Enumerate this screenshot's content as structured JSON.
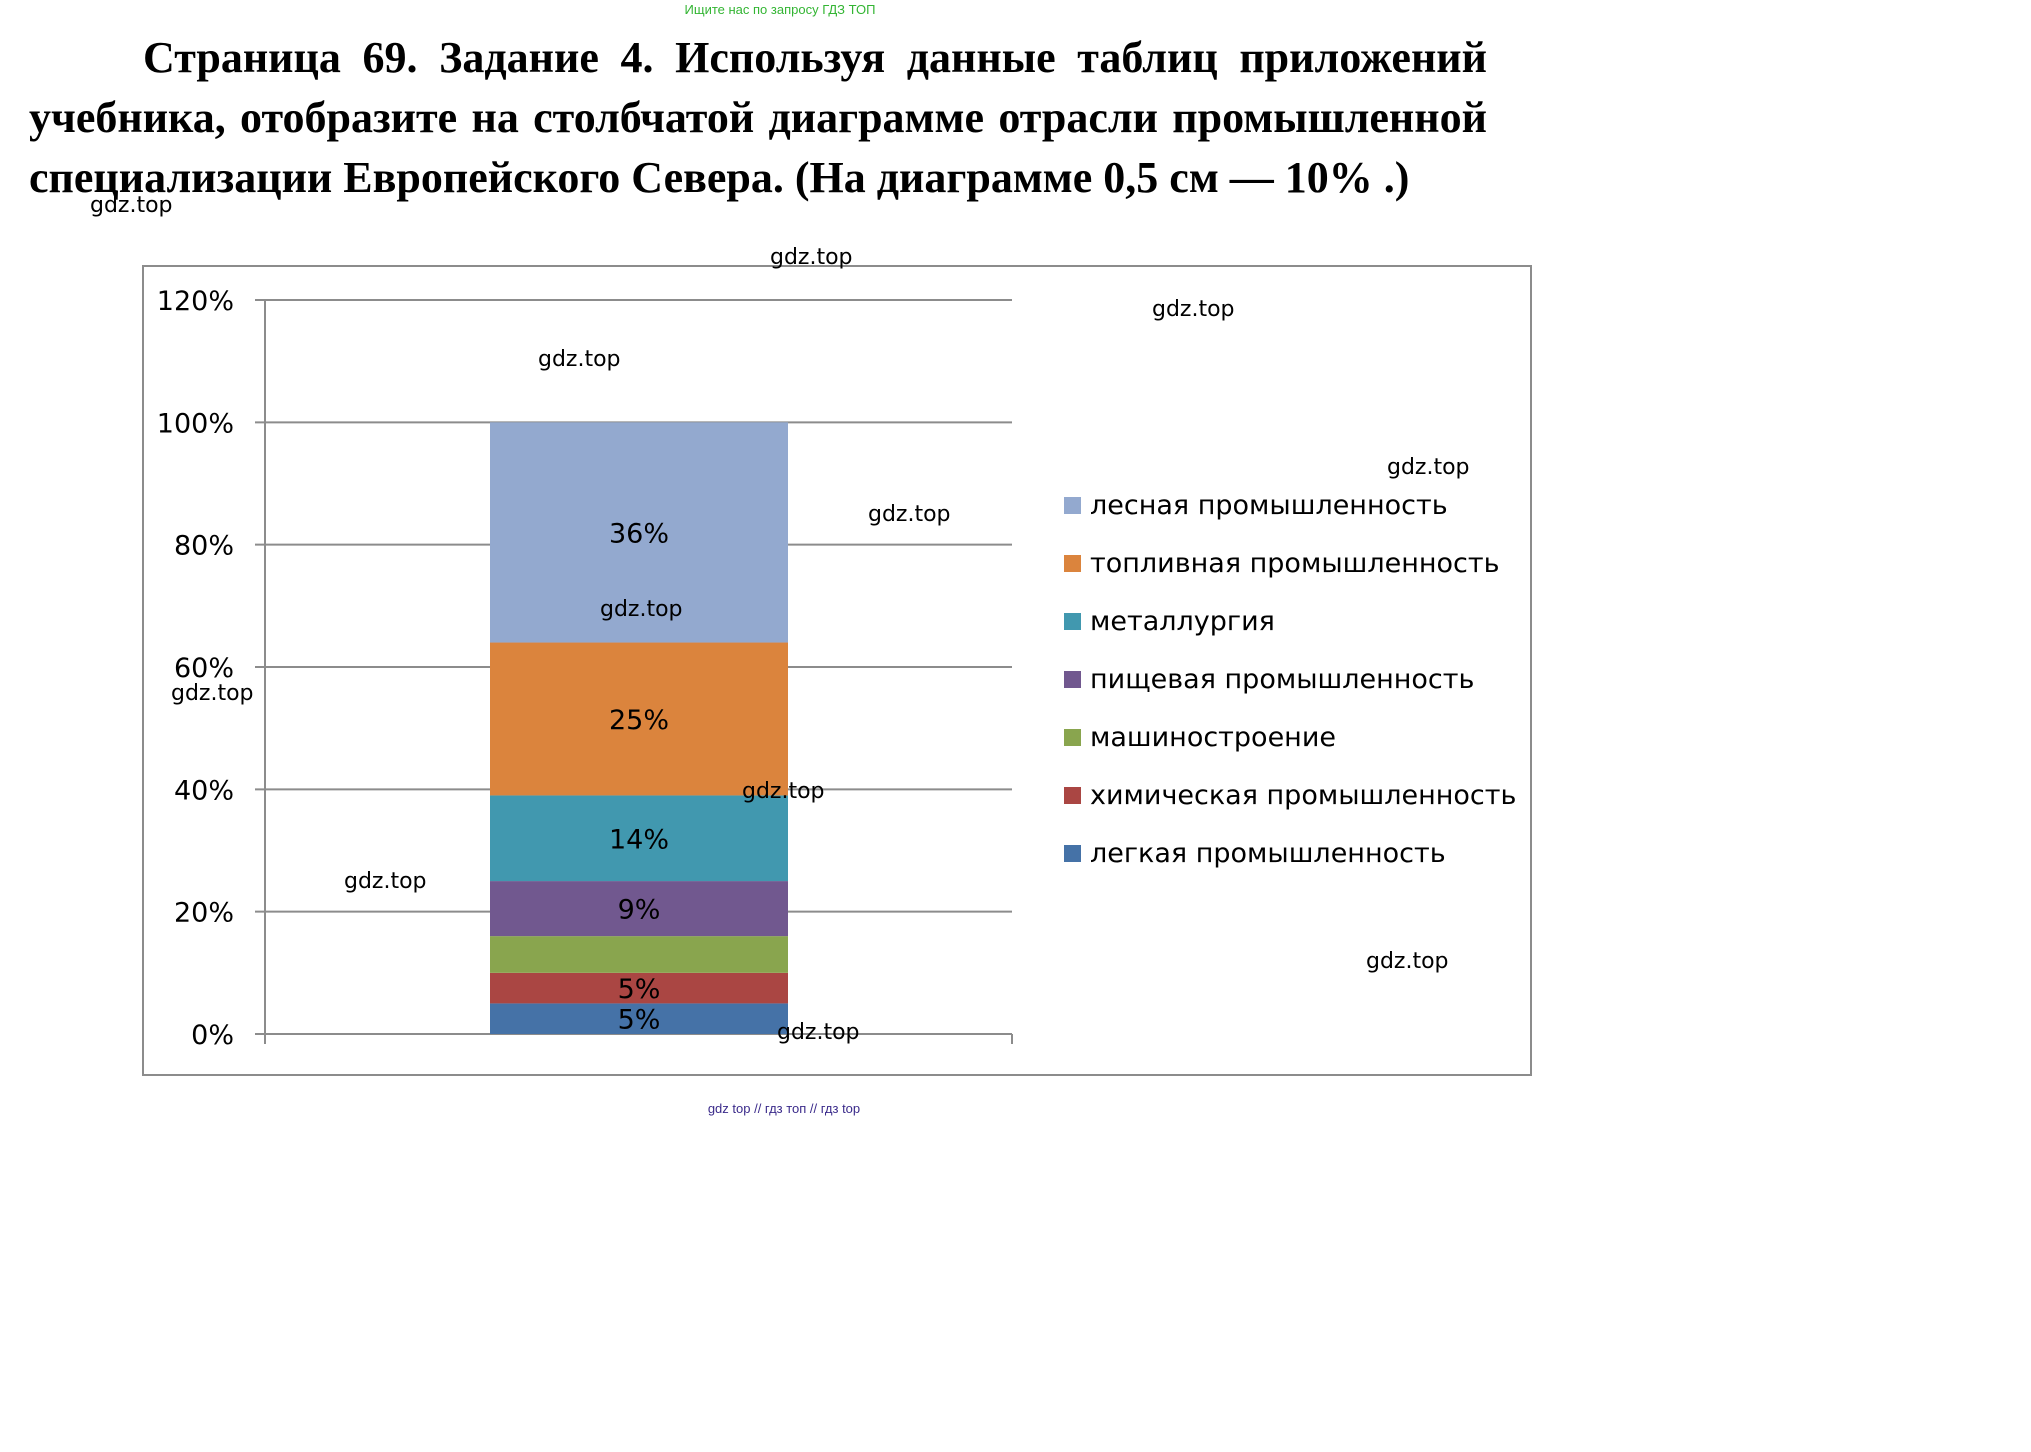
{
  "header": {
    "search_note": "Ищите нас по запросу ГДЗ ТОП",
    "task_heading": "Страница 69. Задание 4.",
    "task_text": "Используя данные таблиц приложений учебника, отобразите на столбчатой диаграмме отрасли промышленной специализации Европейского Севера. (На диаграмме 0,5 см — 10% .)"
  },
  "chart_data": {
    "type": "bar",
    "stacked": true,
    "categories": [
      ""
    ],
    "ylim": [
      0,
      120
    ],
    "yticks": [
      0,
      20,
      40,
      60,
      80,
      100,
      120
    ],
    "ytick_labels": [
      "0%",
      "20%",
      "40%",
      "60%",
      "80%",
      "100%",
      "120%"
    ],
    "grid": true,
    "legend_position": "right",
    "series": [
      {
        "name": "легкая промышленность",
        "value": 5,
        "label": "5%",
        "color": "#4572a7"
      },
      {
        "name": "химическая промышленность",
        "value": 5,
        "label": "5%",
        "color": "#aa4643"
      },
      {
        "name": "машиностроение",
        "value": 6,
        "label": "",
        "color": "#89a54e"
      },
      {
        "name": "пищевая промышленность",
        "value": 9,
        "label": "9%",
        "color": "#71588f"
      },
      {
        "name": "металлургия",
        "value": 14,
        "label": "14%",
        "color": "#4198af"
      },
      {
        "name": "топливная промышленность",
        "value": 25,
        "label": "25%",
        "color": "#db843d"
      },
      {
        "name": "лесная промышленность",
        "value": 36,
        "label": "36%",
        "color": "#93a9cf"
      }
    ],
    "legend_order": [
      "лесная промышленность",
      "топливная промышленность",
      "металлургия",
      "пищевая промышленность",
      "машиностроение",
      "химическая промышленность",
      "легкая промышленность"
    ]
  },
  "watermark": {
    "text": "gdz.top",
    "count": 13
  },
  "footer": {
    "text": "gdz top  //  гдз топ  //  гдз top"
  }
}
